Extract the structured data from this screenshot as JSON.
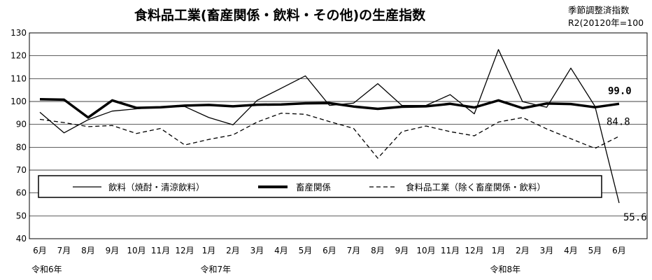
{
  "chart_data": {
    "type": "line",
    "title": "食料品工業(畜産関係・飲料・その他)の生産指数",
    "note_line1": "季節調整済指数",
    "note_line2": "R2(20120年=100",
    "ylim": [
      40,
      130
    ],
    "yticks": [
      "40",
      "50",
      "60",
      "70",
      "80",
      "90",
      "100",
      "110",
      "120",
      "130"
    ],
    "categories": [
      "6月",
      "7月",
      "8月",
      "9月",
      "10月",
      "11月",
      "12月",
      "1月",
      "2月",
      "3月",
      "4月",
      "5月",
      "6月",
      "7月",
      "8月",
      "9月",
      "10月",
      "11月",
      "12月",
      "1月",
      "2月",
      "3月",
      "4月",
      "5月",
      "6月"
    ],
    "era_labels": [
      {
        "text": "令和6年",
        "index": 0
      },
      {
        "text": "令和7年",
        "index": 7
      },
      {
        "text": "令和8年",
        "index": 19
      }
    ],
    "grid": true,
    "legend_position": "inside-middle",
    "series": [
      {
        "name": "飲料（焼酎・清涼飲料）",
        "style": "thin",
        "color": "#000000",
        "values": [
          95.3,
          86.3,
          92.0,
          95.8,
          96.8,
          97.7,
          97.8,
          93.0,
          89.8,
          100.5,
          105.8,
          111.2,
          98.3,
          99.3,
          107.8,
          98.3,
          98.3,
          103.0,
          94.6,
          122.7,
          99.9,
          97.5,
          114.6,
          97.9,
          55.6
        ]
      },
      {
        "name": "畜産関係",
        "style": "thick",
        "color": "#000000",
        "values": [
          101.0,
          100.8,
          93.0,
          100.5,
          97.2,
          97.5,
          98.2,
          98.5,
          97.9,
          98.6,
          98.7,
          99.2,
          99.3,
          97.8,
          96.8,
          97.7,
          97.9,
          99.0,
          97.4,
          100.5,
          97.1,
          99.1,
          98.9,
          97.5,
          99.0
        ]
      },
      {
        "name": "食料品工業（除く畜産関係・飲料）",
        "style": "dashed",
        "color": "#000000",
        "values": [
          92.2,
          90.8,
          89.0,
          89.5,
          86.0,
          88.2,
          81.0,
          83.4,
          85.4,
          91.0,
          94.9,
          94.4,
          91.2,
          88.2,
          75.2,
          86.8,
          89.3,
          86.8,
          85.0,
          91.0,
          93.0,
          88.0,
          83.7,
          79.5,
          84.8
        ]
      }
    ],
    "data_labels": [
      {
        "series": 1,
        "text": "99.0"
      },
      {
        "series": 2,
        "text": "84.8"
      },
      {
        "series": 0,
        "text": "55.6"
      }
    ]
  }
}
